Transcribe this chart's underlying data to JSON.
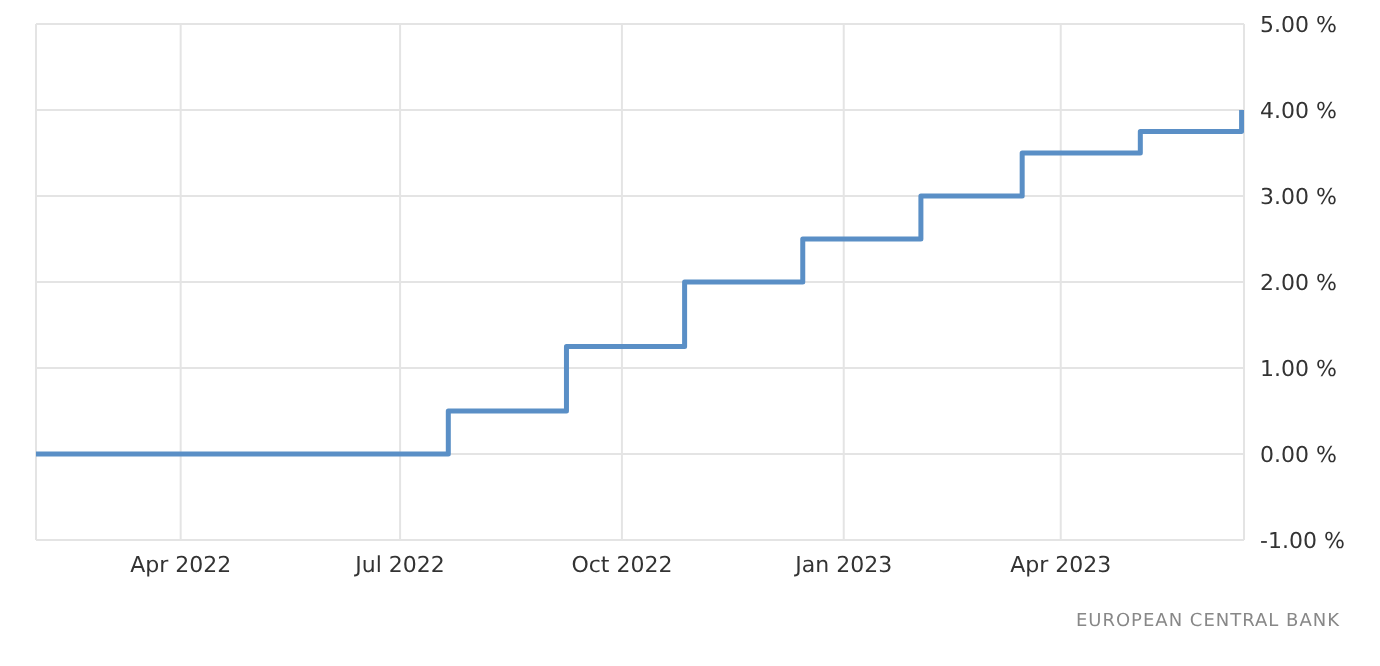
{
  "chart_data": {
    "type": "step",
    "x": [
      "2022-01-31",
      "2022-07-21",
      "2022-09-08",
      "2022-10-27",
      "2022-12-15",
      "2023-02-02",
      "2023-03-16",
      "2023-05-04",
      "2023-06-15"
    ],
    "series": [
      {
        "color": "#5a8fc6",
        "values": [
          0,
          0.5,
          1.25,
          2,
          2.5,
          3,
          3.5,
          3.75,
          4
        ]
      }
    ],
    "xlim": [
      "2022-01-31",
      "2023-06-16"
    ],
    "xticks": [
      {
        "value": "2022-04-01",
        "label": "Apr 2022"
      },
      {
        "value": "2022-07-01",
        "label": "Jul 2022"
      },
      {
        "value": "2022-10-01",
        "label": "Oct 2022"
      },
      {
        "value": "2023-01-01",
        "label": "Jan 2023"
      },
      {
        "value": "2023-04-01",
        "label": "Apr 2023"
      }
    ],
    "ylim": [
      -1,
      5
    ],
    "yticks": [
      {
        "value": -1,
        "label": "-1.00 %"
      },
      {
        "value": 0,
        "label": "0.00 %"
      },
      {
        "value": 1,
        "label": "1.00 %"
      },
      {
        "value": 2,
        "label": "2.00 %"
      },
      {
        "value": 3,
        "label": "3.00 %"
      },
      {
        "value": 4,
        "label": "4.00 %"
      },
      {
        "value": 5,
        "label": "5.00 %"
      }
    ],
    "grid": true,
    "annotations": [
      "EUROPEAN CENTRAL BANK"
    ]
  }
}
